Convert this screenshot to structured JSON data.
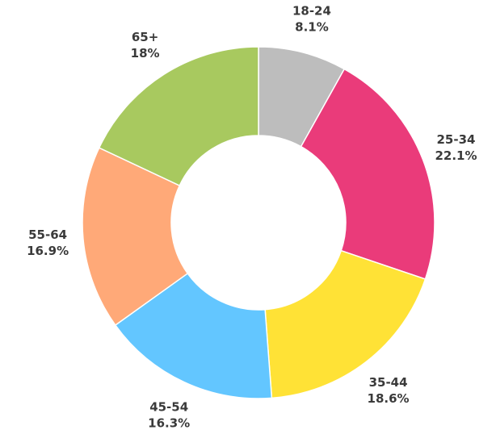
{
  "chart_data": {
    "type": "pie",
    "donut": true,
    "start": "top",
    "direction": "clockwise",
    "categories": [
      "18-24",
      "25-34",
      "35-44",
      "45-54",
      "55-64",
      "65+"
    ],
    "values": [
      8.1,
      22.1,
      18.6,
      16.3,
      16.9,
      18
    ],
    "value_labels": [
      "8.1%",
      "22.1%",
      "18.6%",
      "16.3%",
      "16.9%",
      "18%"
    ],
    "colors": [
      "#bdbdbd",
      "#ea3b7a",
      "#ffe236",
      "#63c6ff",
      "#ffa978",
      "#a8c95f"
    ],
    "legend": "none"
  }
}
